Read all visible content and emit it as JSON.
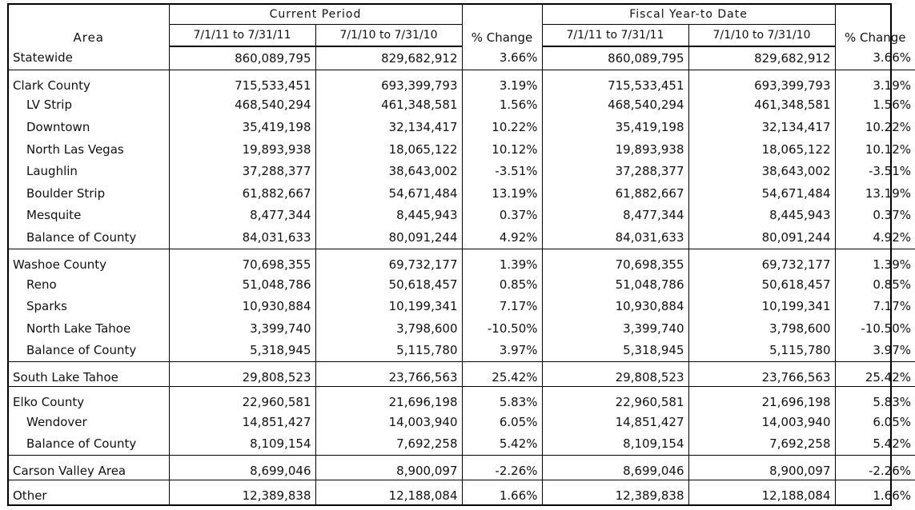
{
  "header": {
    "area_label": "Area",
    "current_period_label": "Current Period",
    "fiscal_label": "Fiscal Year-to Date",
    "col_cur1": "7/1/11 to 7/31/11",
    "col_cur2": "7/1/10 to 7/31/10",
    "col_pct1": "% Change",
    "col_fy1": "7/1/11 to 7/31/11",
    "col_fy2": "7/1/10 to 7/31/10",
    "col_pct2": "% Change"
  },
  "rows": [
    {
      "area": "Statewide",
      "c1": "860,089,795",
      "c2": "829,682,912",
      "p1": "3.66%",
      "f1": "860,089,795",
      "f2": "829,682,912",
      "p2": "3.66%"
    },
    {
      "area": "Clark County",
      "c1": "715,533,451",
      "c2": "693,399,793",
      "p1": "3.19%",
      "f1": "715,533,451",
      "f2": "693,399,793",
      "p2": "3.19%"
    },
    {
      "area": "LV Strip",
      "c1": "468,540,294",
      "c2": "461,348,581",
      "p1": "1.56%",
      "f1": "468,540,294",
      "f2": "461,348,581",
      "p2": "1.56%"
    },
    {
      "area": "Downtown",
      "c1": "35,419,198",
      "c2": "32,134,417",
      "p1": "10.22%",
      "f1": "35,419,198",
      "f2": "32,134,417",
      "p2": "10.22%"
    },
    {
      "area": "North Las Vegas",
      "c1": "19,893,938",
      "c2": "18,065,122",
      "p1": "10.12%",
      "f1": "19,893,938",
      "f2": "18,065,122",
      "p2": "10.12%"
    },
    {
      "area": "Laughlin",
      "c1": "37,288,377",
      "c2": "38,643,002",
      "p1": "-3.51%",
      "f1": "37,288,377",
      "f2": "38,643,002",
      "p2": "-3.51%"
    },
    {
      "area": "Boulder Strip",
      "c1": "61,882,667",
      "c2": "54,671,484",
      "p1": "13.19%",
      "f1": "61,882,667",
      "f2": "54,671,484",
      "p2": "13.19%"
    },
    {
      "area": "Mesquite",
      "c1": "8,477,344",
      "c2": "8,445,943",
      "p1": "0.37%",
      "f1": "8,477,344",
      "f2": "8,445,943",
      "p2": "0.37%"
    },
    {
      "area": "Balance of County",
      "c1": "84,031,633",
      "c2": "80,091,244",
      "p1": "4.92%",
      "f1": "84,031,633",
      "f2": "80,091,244",
      "p2": "4.92%"
    },
    {
      "area": "Washoe County",
      "c1": "70,698,355",
      "c2": "69,732,177",
      "p1": "1.39%",
      "f1": "70,698,355",
      "f2": "69,732,177",
      "p2": "1.39%"
    },
    {
      "area": "Reno",
      "c1": "51,048,786",
      "c2": "50,618,457",
      "p1": "0.85%",
      "f1": "51,048,786",
      "f2": "50,618,457",
      "p2": "0.85%"
    },
    {
      "area": "Sparks",
      "c1": "10,930,884",
      "c2": "10,199,341",
      "p1": "7.17%",
      "f1": "10,930,884",
      "f2": "10,199,341",
      "p2": "7.17%"
    },
    {
      "area": "North Lake Tahoe",
      "c1": "3,399,740",
      "c2": "3,798,600",
      "p1": "-10.50%",
      "f1": "3,399,740",
      "f2": "3,798,600",
      "p2": "-10.50%"
    },
    {
      "area": "Balance of County",
      "c1": "5,318,945",
      "c2": "5,115,780",
      "p1": "3.97%",
      "f1": "5,318,945",
      "f2": "5,115,780",
      "p2": "3.97%"
    },
    {
      "area": "South Lake Tahoe",
      "c1": "29,808,523",
      "c2": "23,766,563",
      "p1": "25.42%",
      "f1": "29,808,523",
      "f2": "23,766,563",
      "p2": "25.42%"
    },
    {
      "area": "Elko County",
      "c1": "22,960,581",
      "c2": "21,696,198",
      "p1": "5.83%",
      "f1": "22,960,581",
      "f2": "21,696,198",
      "p2": "5.83%"
    },
    {
      "area": "Wendover",
      "c1": "14,851,427",
      "c2": "14,003,940",
      "p1": "6.05%",
      "f1": "14,851,427",
      "f2": "14,003,940",
      "p2": "6.05%"
    },
    {
      "area": "Balance of County",
      "c1": "8,109,154",
      "c2": "7,692,258",
      "p1": "5.42%",
      "f1": "8,109,154",
      "f2": "7,692,258",
      "p2": "5.42%"
    },
    {
      "area": "Carson Valley Area",
      "c1": "8,699,046",
      "c2": "8,900,097",
      "p1": "-2.26%",
      "f1": "8,699,046",
      "f2": "8,900,097",
      "p2": "-2.26%"
    },
    {
      "area": "Other",
      "c1": "12,389,838",
      "c2": "12,188,084",
      "p1": "1.66%",
      "f1": "12,389,838",
      "f2": "12,188,084",
      "p2": "1.66%"
    }
  ]
}
